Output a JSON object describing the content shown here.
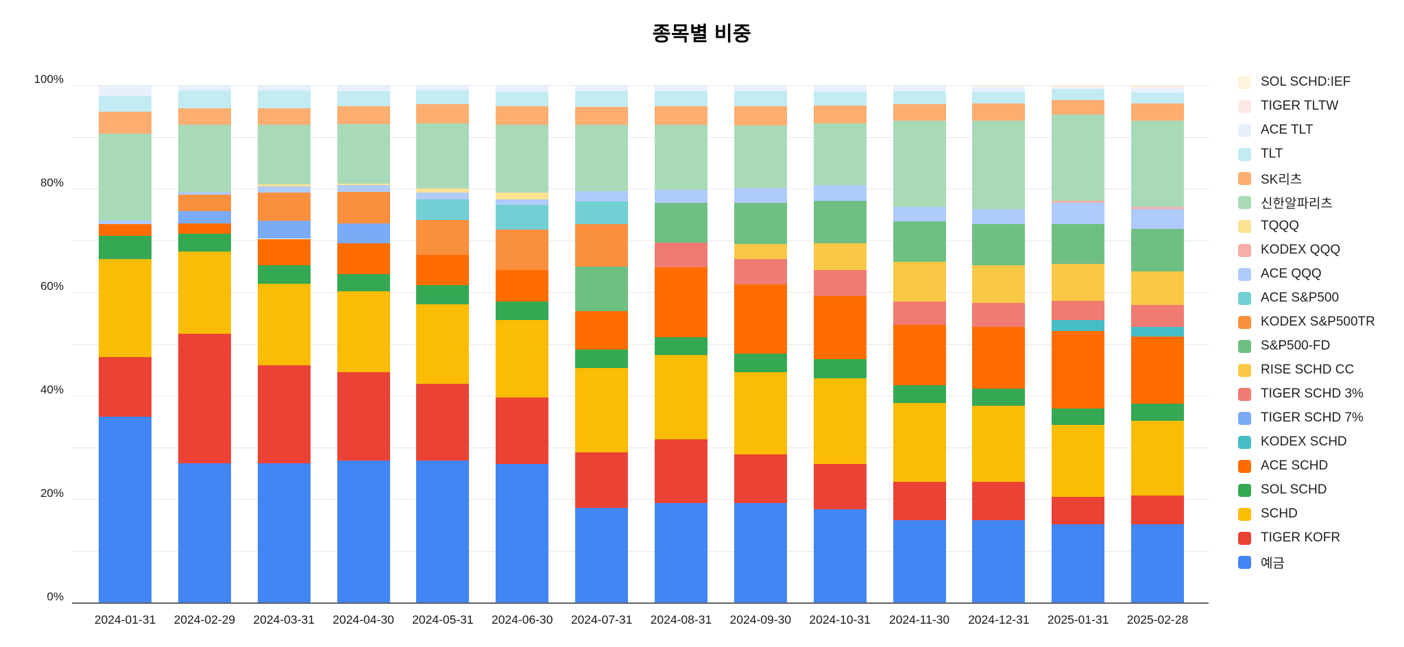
{
  "title": "종목별 비중",
  "y_axis": {
    "tick_labels": [
      "0%",
      "20%",
      "40%",
      "60%",
      "80%",
      "100%"
    ],
    "tick_values": [
      0,
      20,
      40,
      60,
      80,
      100
    ],
    "minor_gridline_step": 10,
    "range": [
      0,
      100
    ]
  },
  "chart_data": {
    "type": "bar",
    "stacked": true,
    "unit": "%",
    "title": "종목별 비중",
    "xlabel": "",
    "ylabel": "",
    "ylim": [
      0,
      100
    ],
    "grid": true,
    "legend_position": "right",
    "legend_order": "top item is last (topmost) stack series",
    "categories": [
      "2024-01-31",
      "2024-02-29",
      "2024-03-31",
      "2024-04-30",
      "2024-05-31",
      "2024-06-30",
      "2024-07-31",
      "2024-08-31",
      "2024-09-30",
      "2024-10-31",
      "2024-11-30",
      "2024-12-31",
      "2025-01-31",
      "2025-02-28"
    ],
    "series": [
      {
        "name": "예금",
        "color": "#4285F4",
        "values": [
          36.0,
          27.0,
          27.0,
          27.6,
          27.5,
          26.9,
          18.4,
          19.3,
          19.3,
          18.2,
          16.0,
          16.0,
          15.2,
          15.3
        ]
      },
      {
        "name": "TIGER KOFR",
        "color": "#EA4335",
        "values": [
          11.5,
          25.0,
          19.0,
          17.1,
          14.9,
          12.8,
          10.7,
          12.4,
          9.4,
          8.7,
          7.5,
          7.5,
          5.3,
          5.5
        ]
      },
      {
        "name": "SCHD",
        "color": "#FBBC04",
        "values": [
          19.0,
          16.0,
          15.7,
          15.6,
          15.3,
          15.0,
          16.3,
          16.2,
          15.9,
          16.5,
          15.2,
          14.7,
          14.0,
          14.5
        ]
      },
      {
        "name": "SOL SCHD",
        "color": "#34A853",
        "values": [
          4.5,
          3.4,
          3.6,
          3.3,
          3.7,
          3.6,
          3.6,
          3.5,
          3.6,
          3.7,
          3.4,
          3.2,
          3.1,
          3.3
        ]
      },
      {
        "name": "ACE SCHD",
        "color": "#FF6D00",
        "values": [
          2.3,
          2.0,
          5.1,
          6.0,
          5.9,
          6.1,
          7.4,
          13.5,
          13.4,
          12.3,
          11.7,
          12.0,
          15.0,
          12.9
        ]
      },
      {
        "name": "KODEX SCHD",
        "color": "#46BDC6",
        "values": [
          0,
          0,
          0,
          0,
          0,
          0,
          0,
          0,
          0,
          0,
          0,
          0,
          2.1,
          1.9
        ]
      },
      {
        "name": "TIGER SCHD 7%",
        "color": "#7BAAF7",
        "values": [
          0,
          2.4,
          3.5,
          3.8,
          0,
          0,
          0,
          0,
          0,
          0,
          0,
          0,
          0,
          0
        ]
      },
      {
        "name": "TIGER SCHD 3%",
        "color": "#F07B72",
        "values": [
          0,
          0,
          0,
          0,
          0,
          0,
          0,
          4.8,
          4.9,
          5.0,
          4.5,
          4.6,
          3.7,
          4.2
        ]
      },
      {
        "name": "RISE SCHD CC",
        "color": "#F9C846",
        "values": [
          0,
          0,
          0,
          0,
          0,
          0,
          0,
          0,
          2.9,
          5.2,
          7.6,
          7.3,
          7.2,
          6.5
        ]
      },
      {
        "name": "S&P500-FD",
        "color": "#6FBF83",
        "values": [
          0,
          0,
          0,
          0,
          0,
          0,
          8.6,
          7.6,
          7.9,
          8.1,
          7.9,
          7.9,
          7.7,
          8.2
        ]
      },
      {
        "name": "KODEX S&P500TR",
        "color": "#FA903E",
        "values": [
          0,
          3.2,
          5.5,
          6.1,
          6.8,
          7.8,
          8.3,
          0,
          0,
          0,
          0,
          0,
          0,
          0
        ]
      },
      {
        "name": "ACE S&P500",
        "color": "#72D0D4",
        "values": [
          0,
          0,
          0,
          0,
          3.9,
          4.7,
          4.3,
          0,
          0,
          0,
          0,
          0,
          0,
          0
        ]
      },
      {
        "name": "ACE QQQ",
        "color": "#AECBFA",
        "values": [
          0.6,
          0.5,
          1.1,
          1.3,
          1.3,
          1.1,
          2.0,
          2.6,
          3.0,
          3.1,
          2.7,
          3.0,
          4.1,
          3.8
        ]
      },
      {
        "name": "KODEX QQQ",
        "color": "#F6AEA9",
        "values": [
          0,
          0,
          0,
          0,
          0,
          0,
          0,
          0,
          0,
          0,
          0,
          0,
          0.3,
          0.5
        ]
      },
      {
        "name": "TQQQ",
        "color": "#FDE293",
        "values": [
          0,
          0,
          0.4,
          0.3,
          0.9,
          1.3,
          0,
          0,
          0,
          0,
          0,
          0,
          0,
          0
        ]
      },
      {
        "name": "신한알파리츠",
        "color": "#A9DAB8",
        "values": [
          16.8,
          12.9,
          11.5,
          11.5,
          12.5,
          13.2,
          12.8,
          12.6,
          12.0,
          11.9,
          16.7,
          17.1,
          16.7,
          16.7
        ]
      },
      {
        "name": "SK리츠",
        "color": "#FCAD70",
        "values": [
          4.3,
          3.2,
          3.2,
          3.4,
          3.7,
          3.5,
          3.5,
          3.5,
          3.7,
          3.5,
          3.2,
          3.2,
          2.8,
          3.2
        ]
      },
      {
        "name": "TLT",
        "color": "#C2EBF2",
        "values": [
          3.0,
          3.5,
          3.5,
          2.9,
          2.7,
          2.8,
          3.0,
          2.9,
          2.9,
          2.6,
          2.5,
          2.3,
          2.2,
          2.2
        ]
      },
      {
        "name": "ACE TLT",
        "color": "#E8F0FE",
        "values": [
          2.0,
          0.9,
          0.9,
          1.1,
          0.9,
          1.2,
          1.1,
          1.1,
          1.1,
          1.2,
          1.1,
          0.9,
          0.3,
          0.8
        ]
      },
      {
        "name": "TIGER TLTW",
        "color": "#FCE8E6",
        "values": [
          0,
          0,
          0,
          0,
          0,
          0,
          0,
          0,
          0,
          0,
          0,
          0,
          0.1,
          0.2
        ]
      },
      {
        "name": "SOL SCHD:IEF",
        "color": "#FEF3DC",
        "values": [
          0,
          0,
          0,
          0,
          0,
          0,
          0,
          0,
          0,
          0,
          0,
          0.3,
          0.2,
          0.3
        ]
      }
    ]
  }
}
